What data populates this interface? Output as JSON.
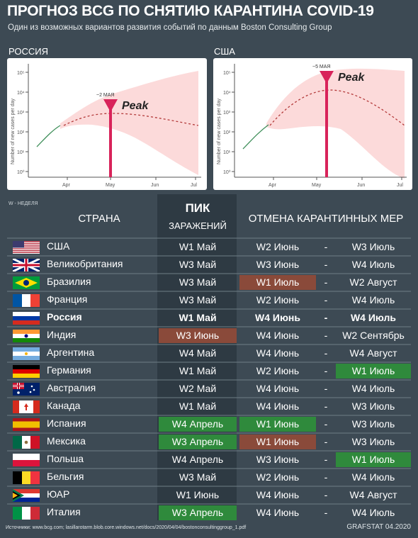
{
  "title": "ПРОГНОЗ BCG ПО СНЯТИЮ КАРАНТИНА COVID-19",
  "subtitle": "Один из возможных вариантов развития событий по данным Boston Consulting Group",
  "charts": [
    {
      "label": "РОССИЯ",
      "peak_note": "~2 МАЯ",
      "peak_text": "Peak",
      "ylabel": "Number of new cases per day",
      "xticks": [
        "Apr",
        "May",
        "Jun",
        "Jul"
      ],
      "yticks": [
        "10⁵",
        "10⁴",
        "10³",
        "10²",
        "10¹",
        "10⁰"
      ]
    },
    {
      "label": "США",
      "peak_note": "~5 МАЯ",
      "peak_text": "Peak",
      "ylabel": "Number of new cases per day",
      "xticks": [
        "Apr",
        "May",
        "Jun",
        "Jul"
      ],
      "yticks": [
        "10⁵",
        "10⁴",
        "10³",
        "10²",
        "10¹",
        "10⁰"
      ]
    }
  ],
  "chart_data": [
    {
      "type": "line",
      "title": "РОССИЯ",
      "ylabel": "Number of new cases per day",
      "y_scale": "log",
      "categories": [
        "Apr",
        "May",
        "Jun",
        "Jul"
      ],
      "peak": "~2 МАЯ"
    },
    {
      "type": "line",
      "title": "США",
      "ylabel": "Number of new cases per day",
      "y_scale": "log",
      "categories": [
        "Apr",
        "May",
        "Jun",
        "Jul"
      ],
      "peak": "~5 МАЯ"
    }
  ],
  "table": {
    "week_note": "W - НЕДЕЛЯ",
    "col_country": "СТРАНА",
    "col_peak_1": "ПИК",
    "col_peak_2": "ЗАРАЖЕНИЙ",
    "col_end": "ОТМЕНА КАРАНТИННЫХ МЕР",
    "dash": "-",
    "rows": [
      {
        "country": "США",
        "peak": "W1 Май",
        "start": "W2 Июнь",
        "end": "W3 Июль"
      },
      {
        "country": "Великобритания",
        "peak": "W3 Май",
        "start": "W3 Июнь",
        "end": "W4 Июль"
      },
      {
        "country": "Бразилия",
        "peak": "W3 Май",
        "start": "W1 Июль",
        "end": "W2 Август"
      },
      {
        "country": "Франция",
        "peak": "W3 Май",
        "start": "W2 Июнь",
        "end": "W4 Июль"
      },
      {
        "country": "Россия",
        "peak": "W1 Май",
        "start": "W4 Июнь",
        "end": "W4 Июль"
      },
      {
        "country": "Индия",
        "peak": "W3 Июнь",
        "start": "W4 Июнь",
        "end": "W2 Сентябрь"
      },
      {
        "country": "Аргентина",
        "peak": "W4 Май",
        "start": "W4 Июнь",
        "end": "W4 Август"
      },
      {
        "country": "Германия",
        "peak": "W1 Май",
        "start": "W2 Июнь",
        "end": "W1 Июль"
      },
      {
        "country": "Австралия",
        "peak": "W2 Май",
        "start": "W4 Июнь",
        "end": "W4 Июль"
      },
      {
        "country": "Канада",
        "peak": "W1 Май",
        "start": "W4 Июнь",
        "end": "W3 Июль"
      },
      {
        "country": "Испания",
        "peak": "W4 Апрель",
        "start": "W1 Июнь",
        "end": "W3 Июль"
      },
      {
        "country": "Мексика",
        "peak": "W3 Апрель",
        "start": "W1 Июнь",
        "end": "W3 Июль"
      },
      {
        "country": "Польша",
        "peak": "W4 Апрель",
        "start": "W3 Июнь",
        "end": "W1 Июль"
      },
      {
        "country": "Бельгия",
        "peak": "W3 Май",
        "start": "W2 Июнь",
        "end": "W4 Июль"
      },
      {
        "country": "ЮАР",
        "peak": "W1 Июнь",
        "start": "W4 Июнь",
        "end": "W4 Август"
      },
      {
        "country": "Италия",
        "peak": "W3 Апрель",
        "start": "W4 Июнь",
        "end": "W4 Июль"
      }
    ]
  },
  "sources": "Источники: www.bcg.com; lasillarotarm.blob.core.windows.net/docs/2020/04/04/bostonconsultinggroup_1.pdf",
  "brand": "GRAFSTAT 04.2020",
  "colors": {
    "background": "#3d4a54",
    "band": "#fbd3d3",
    "peak": "#d8235a",
    "highlight_red": "#8a4a3a",
    "highlight_green": "#2f8a3c"
  }
}
